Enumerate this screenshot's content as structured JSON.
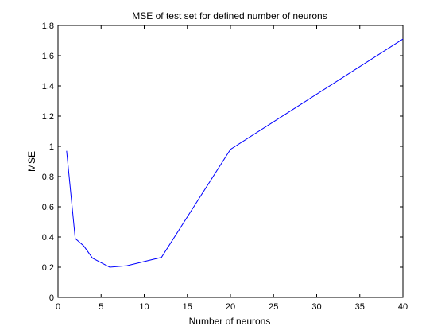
{
  "chart_data": {
    "type": "line",
    "title": "MSE of test set for defined number of neurons",
    "xlabel": "Number of neurons",
    "ylabel": "MSE",
    "xlim": [
      0,
      40
    ],
    "ylim": [
      0,
      1.8
    ],
    "xticks": [
      0,
      5,
      10,
      15,
      20,
      25,
      30,
      35,
      40
    ],
    "yticks": [
      0,
      0.2,
      0.4,
      0.6,
      0.8,
      1,
      1.2,
      1.4,
      1.6,
      1.8
    ],
    "xtick_labels": [
      "0",
      "5",
      "10",
      "15",
      "20",
      "25",
      "30",
      "35",
      "40"
    ],
    "ytick_labels": [
      "0",
      "0.2",
      "0.4",
      "0.6",
      "0.8",
      "1",
      "1.2",
      "1.4",
      "1.6",
      "1.8"
    ],
    "grid": false,
    "series": [
      {
        "color": "#0000ff",
        "x": [
          1,
          2,
          3,
          4,
          5,
          6,
          8,
          12,
          20,
          40
        ],
        "y": [
          0.97,
          0.39,
          0.34,
          0.26,
          0.23,
          0.2,
          0.21,
          0.265,
          0.98,
          1.71
        ]
      }
    ]
  }
}
